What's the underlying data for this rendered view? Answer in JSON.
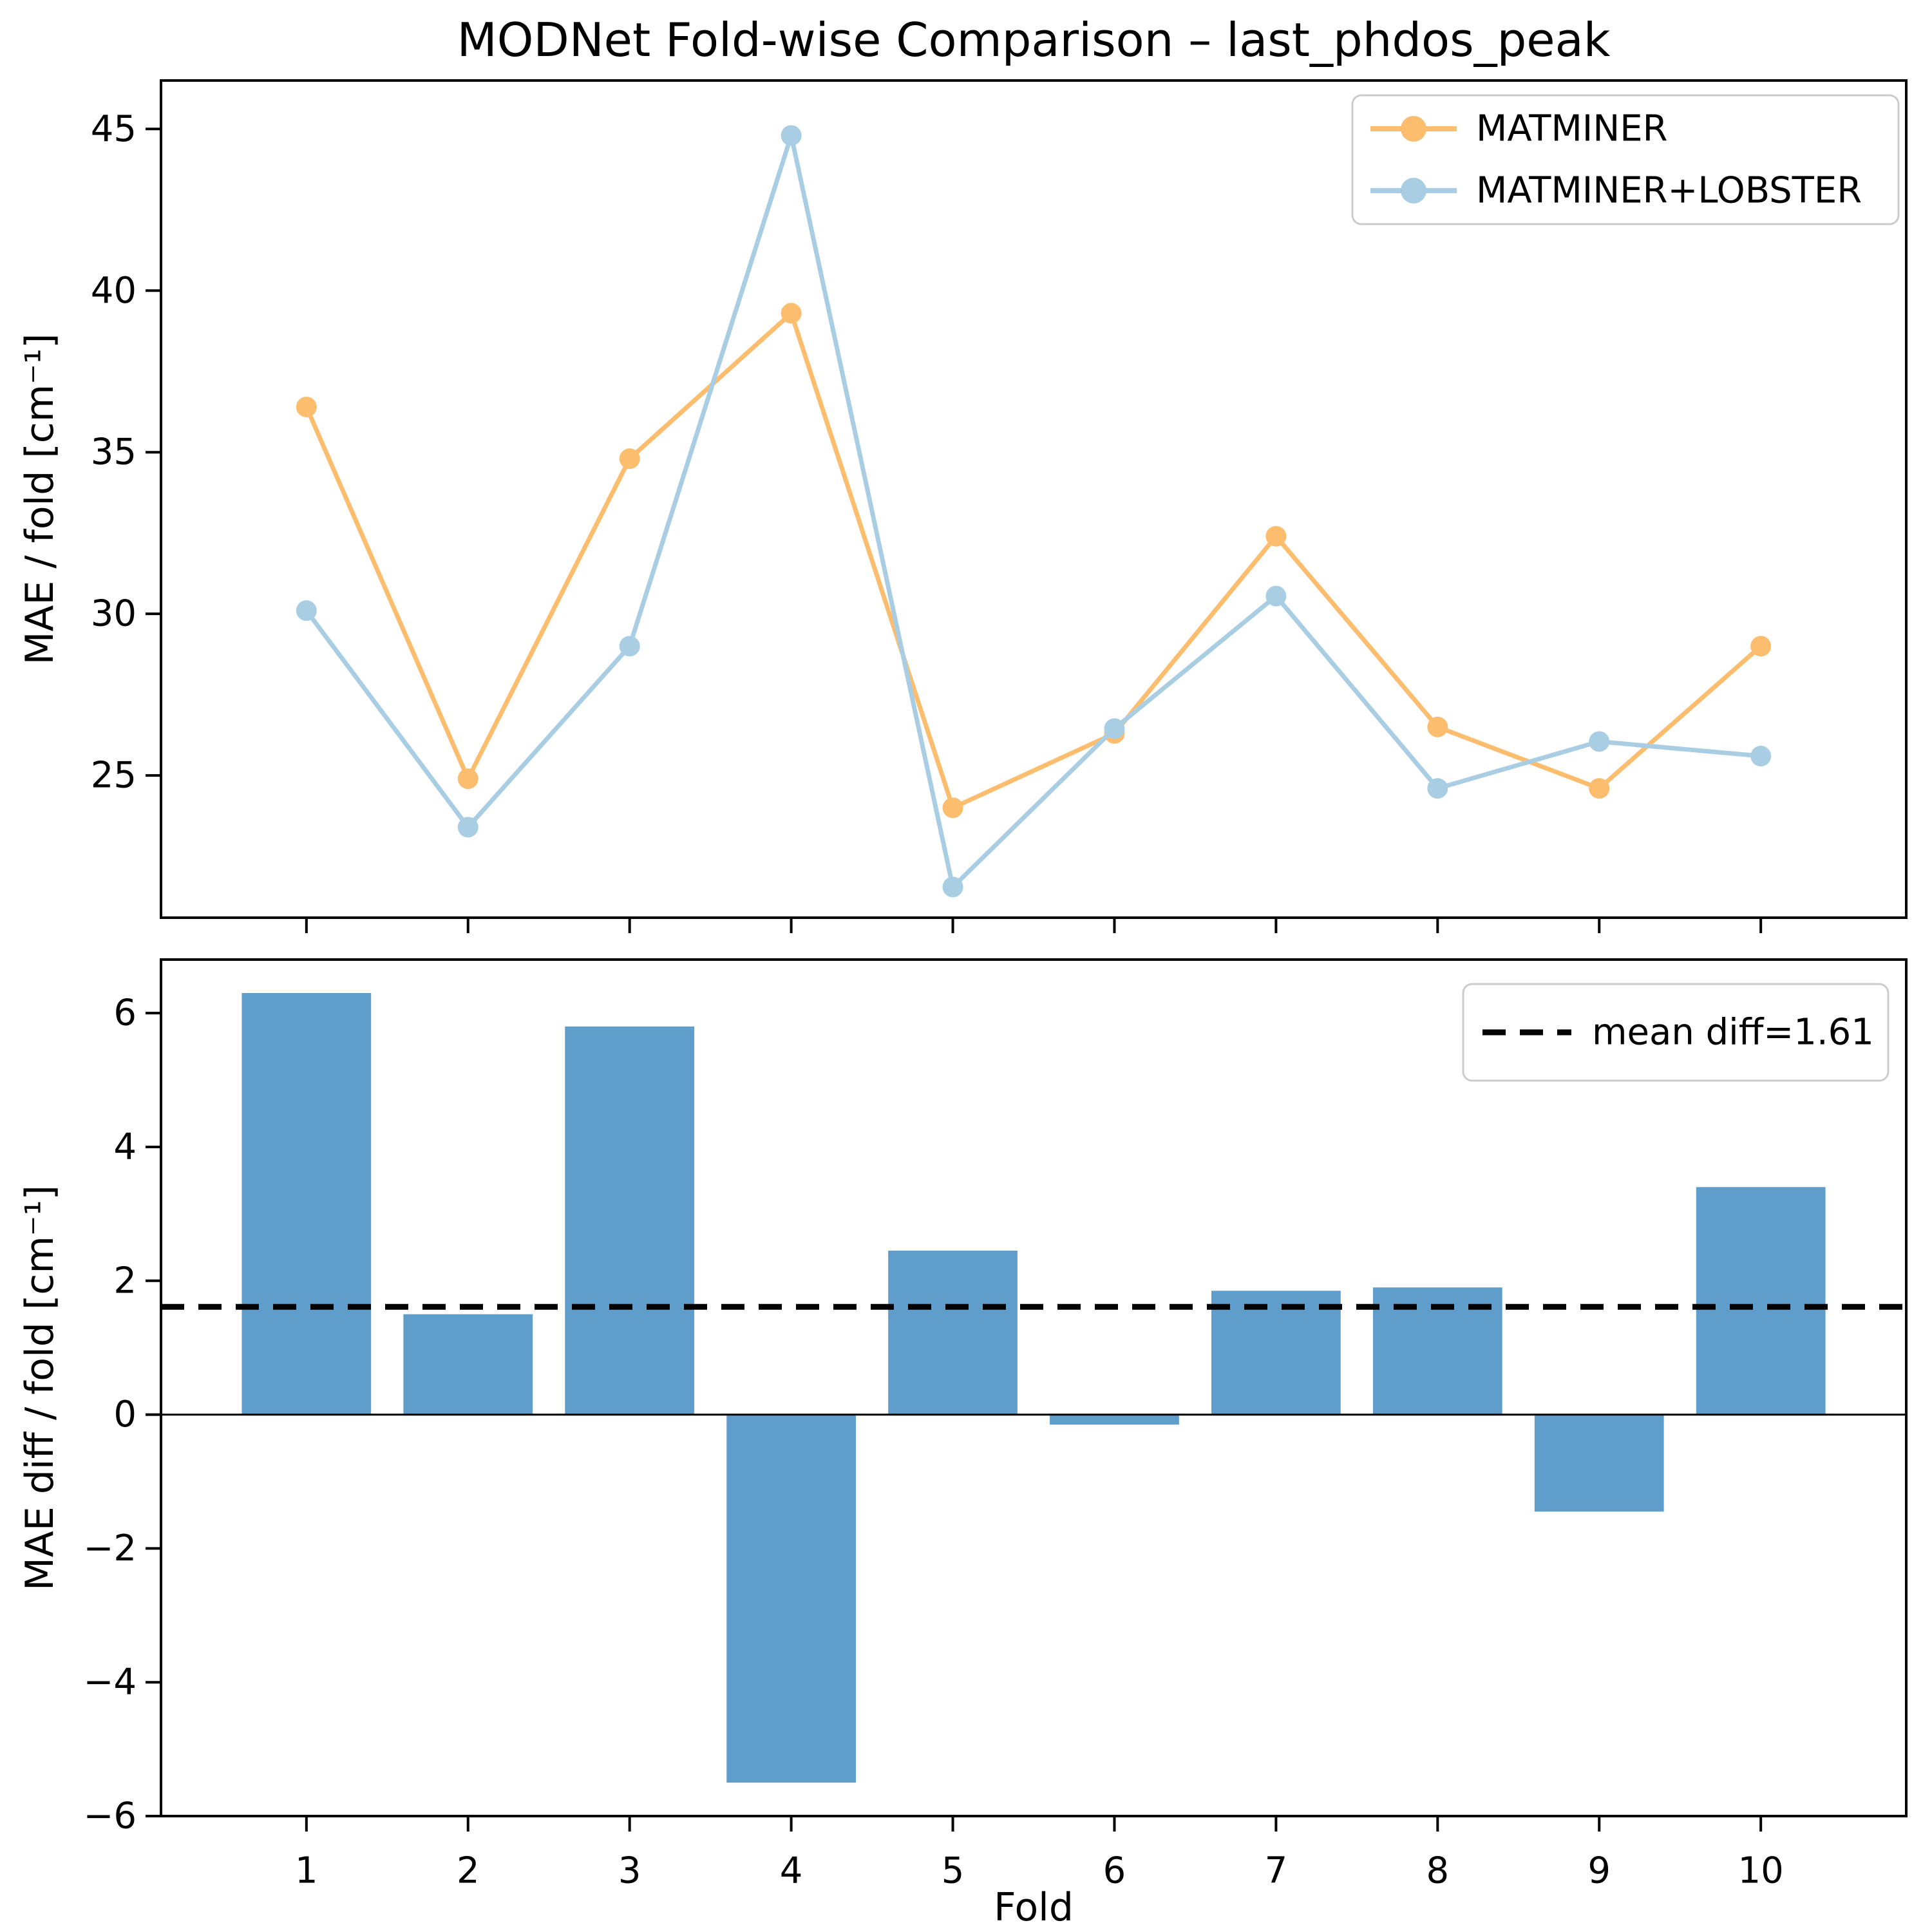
{
  "figure": {
    "kind": "matplotlib-style dual subplot figure",
    "background": "#ffffff",
    "axis_color": "#000000"
  },
  "chart_data": [
    {
      "type": "line",
      "title": "MODNet Fold-wise Comparison – last_phdos_peak",
      "x": [
        1,
        2,
        3,
        4,
        5,
        6,
        7,
        8,
        9,
        10
      ],
      "series": [
        {
          "name": "MATMINER",
          "color": "#FCBE6E",
          "marker": "circle",
          "values": [
            36.4,
            24.9,
            34.8,
            39.3,
            24.0,
            26.3,
            32.4,
            26.5,
            24.6,
            29.0
          ]
        },
        {
          "name": "MATMINER+LOBSTER",
          "color": "#A9CEE4",
          "marker": "circle",
          "values": [
            30.1,
            23.4,
            29.0,
            44.8,
            21.55,
            26.45,
            30.55,
            24.6,
            26.05,
            25.6
          ]
        }
      ],
      "ylabel": "MAE / fold [cm⁻¹]",
      "yticks": [
        25,
        30,
        35,
        40,
        45
      ],
      "ylim": [
        20.6,
        46.5
      ],
      "xlim": [
        0.1,
        10.9
      ],
      "grid": false,
      "legend_position": "upper right"
    },
    {
      "type": "bar",
      "x": [
        1,
        2,
        3,
        4,
        5,
        6,
        7,
        8,
        9,
        10
      ],
      "xtick_labels": [
        "1",
        "2",
        "3",
        "4",
        "5",
        "6",
        "7",
        "8",
        "9",
        "10"
      ],
      "values": [
        6.3,
        1.5,
        5.8,
        -5.5,
        2.45,
        -0.15,
        1.85,
        1.9,
        -1.45,
        3.4
      ],
      "bar_color": "#5F9DCB",
      "ylabel": "MAE diff / fold [cm⁻¹]",
      "xlabel": "Fold",
      "yticks": [
        -6,
        -4,
        -2,
        0,
        2,
        4,
        6
      ],
      "ylim": [
        -6.0,
        6.8
      ],
      "xlim": [
        0.1,
        10.9
      ],
      "grid": false,
      "zero_line": true,
      "mean_line": {
        "value": 1.61,
        "label": "mean diff=1.61",
        "color": "#000000",
        "style": "dashed"
      },
      "legend_position": "upper right"
    }
  ]
}
